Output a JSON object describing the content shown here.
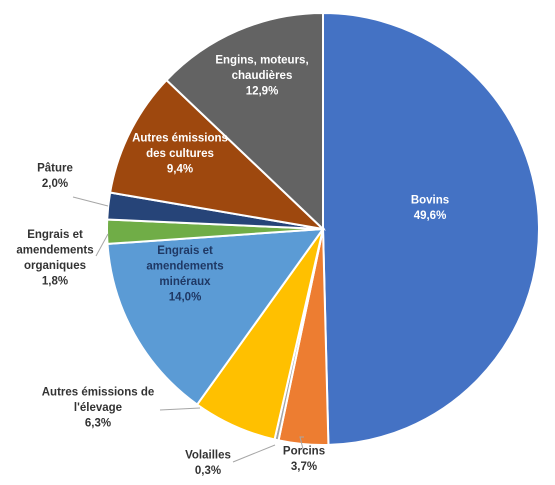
{
  "chart_data": {
    "type": "pie",
    "title": "",
    "slices": [
      {
        "name": "Bovins",
        "value": 49.6,
        "label": "49,6%",
        "color": "#4472c4",
        "text_color": "#ffffff",
        "outside": false
      },
      {
        "name": "Porcins",
        "value": 3.7,
        "label": "3,7%",
        "color": "#ed7d31",
        "text_color": "#333333",
        "outside": true
      },
      {
        "name": "Volailles",
        "value": 0.3,
        "label": "0,3%",
        "color": "#a5a5a5",
        "text_color": "#333333",
        "outside": true
      },
      {
        "name": "Autres émissions de l'élevage",
        "value": 6.3,
        "label": "6,3%",
        "color": "#ffc000",
        "text_color": "#333333",
        "outside": true
      },
      {
        "name": "Engrais et amendements minéraux",
        "value": 14.0,
        "label": "14,0%",
        "color": "#5b9bd5",
        "text_color": "#1f3864",
        "outside": false
      },
      {
        "name": "Engrais et amendements organiques",
        "value": 1.8,
        "label": "1,8%",
        "color": "#70ad47",
        "text_color": "#333333",
        "outside": true
      },
      {
        "name": "Pâture",
        "value": 2.0,
        "label": "2,0%",
        "color": "#264478",
        "text_color": "#333333",
        "outside": true
      },
      {
        "name": "Autres émissions des cultures",
        "value": 9.4,
        "label": "9,4%",
        "color": "#9e480e",
        "text_color": "#ffffff",
        "outside": false
      },
      {
        "name": "Engins, moteurs, chaudières",
        "value": 12.9,
        "label": "12,9%",
        "color": "#636363",
        "text_color": "#ffffff",
        "outside": false
      }
    ]
  }
}
